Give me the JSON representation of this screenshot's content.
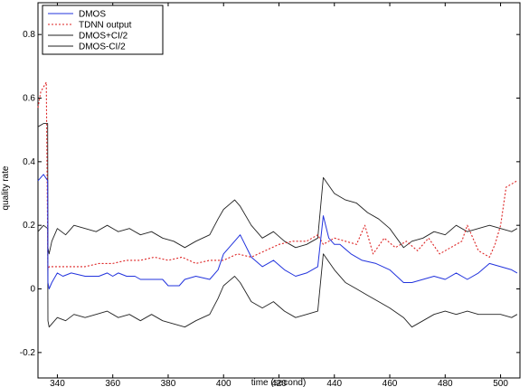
{
  "chart_data": {
    "type": "line",
    "xlabel": "time (second)",
    "ylabel": "quality rate",
    "xlim": [
      333,
      507
    ],
    "ylim": [
      -0.28,
      0.9
    ],
    "xticks": [
      340,
      360,
      380,
      400,
      420,
      440,
      460,
      480,
      500
    ],
    "yticks": [
      -0.2,
      0,
      0.2,
      0.4,
      0.6,
      0.8
    ],
    "xtick_labels": [
      "340",
      "360",
      "380",
      "400",
      "420",
      "440",
      "460",
      "480",
      "500"
    ],
    "ytick_labels": [
      "-0.2",
      "0",
      "0.2",
      "0.4",
      "0.6",
      "0.8"
    ],
    "grid": false,
    "legend": {
      "position": "top-left",
      "entries": [
        "DMOS",
        "TDNN output",
        "DMOS+CI/2",
        "DMOS-CI/2"
      ]
    },
    "series": [
      {
        "name": "DMOS",
        "color": "#2233dd",
        "x": [
          333,
          335,
          336.5,
          336.6,
          337,
          338,
          340,
          342,
          345,
          350,
          355,
          358,
          360,
          362,
          365,
          368,
          370,
          374,
          378,
          380,
          384,
          386,
          390,
          395,
          398,
          400,
          403,
          406,
          410,
          414,
          418,
          422,
          426,
          430,
          434,
          436,
          438,
          440,
          442,
          446,
          450,
          455,
          460,
          465,
          468,
          472,
          476,
          480,
          484,
          488,
          492,
          496,
          500,
          504,
          506
        ],
        "y": [
          0.34,
          0.36,
          0.34,
          0.02,
          0.0,
          0.02,
          0.05,
          0.04,
          0.05,
          0.04,
          0.04,
          0.05,
          0.04,
          0.05,
          0.04,
          0.04,
          0.03,
          0.03,
          0.03,
          0.01,
          0.01,
          0.03,
          0.04,
          0.03,
          0.06,
          0.11,
          0.14,
          0.17,
          0.1,
          0.07,
          0.09,
          0.06,
          0.04,
          0.05,
          0.07,
          0.23,
          0.16,
          0.14,
          0.14,
          0.11,
          0.09,
          0.08,
          0.06,
          0.02,
          0.02,
          0.03,
          0.04,
          0.03,
          0.05,
          0.03,
          0.05,
          0.08,
          0.07,
          0.06,
          0.05
        ]
      },
      {
        "name": "TDNN output",
        "color": "#dd2222",
        "x": [
          333,
          334,
          336,
          336.6,
          337,
          340,
          345,
          350,
          355,
          360,
          365,
          370,
          375,
          380,
          385,
          390,
          395,
          400,
          405,
          410,
          415,
          420,
          425,
          430,
          434,
          436,
          440,
          444,
          448,
          451,
          454,
          458,
          462,
          466,
          470,
          474,
          478,
          482,
          486,
          488,
          492,
          496,
          498,
          500,
          502,
          504,
          506
        ],
        "y": [
          0.57,
          0.62,
          0.65,
          0.06,
          0.07,
          0.07,
          0.07,
          0.07,
          0.08,
          0.08,
          0.09,
          0.09,
          0.1,
          0.09,
          0.1,
          0.08,
          0.09,
          0.09,
          0.11,
          0.1,
          0.12,
          0.14,
          0.15,
          0.15,
          0.17,
          0.14,
          0.16,
          0.15,
          0.14,
          0.2,
          0.11,
          0.16,
          0.13,
          0.15,
          0.12,
          0.16,
          0.11,
          0.13,
          0.15,
          0.2,
          0.12,
          0.1,
          0.14,
          0.2,
          0.32,
          0.33,
          0.34
        ]
      },
      {
        "name": "DMOS+CI/2",
        "color": "#222222",
        "x": [
          333,
          335,
          336.5,
          336.6,
          337,
          338,
          340,
          343,
          346,
          350,
          354,
          358,
          362,
          366,
          370,
          374,
          378,
          382,
          386,
          390,
          395,
          398,
          400,
          404,
          406,
          410,
          414,
          418,
          422,
          426,
          430,
          434,
          436,
          440,
          444,
          448,
          452,
          456,
          460,
          465,
          468,
          472,
          476,
          480,
          484,
          488,
          492,
          496,
          500,
          504,
          506
        ],
        "y": [
          0.51,
          0.52,
          0.52,
          0.13,
          0.11,
          0.15,
          0.19,
          0.17,
          0.2,
          0.19,
          0.18,
          0.2,
          0.18,
          0.19,
          0.17,
          0.18,
          0.16,
          0.15,
          0.13,
          0.15,
          0.17,
          0.22,
          0.25,
          0.28,
          0.26,
          0.2,
          0.16,
          0.18,
          0.15,
          0.13,
          0.14,
          0.16,
          0.35,
          0.3,
          0.28,
          0.27,
          0.24,
          0.22,
          0.19,
          0.13,
          0.15,
          0.16,
          0.18,
          0.17,
          0.2,
          0.18,
          0.19,
          0.2,
          0.19,
          0.18,
          0.19
        ]
      },
      {
        "name": "DMOS-CI/2",
        "color": "#222222",
        "x": [
          333,
          335,
          336.5,
          336.6,
          337,
          338,
          340,
          343,
          346,
          350,
          354,
          358,
          362,
          366,
          370,
          374,
          378,
          382,
          386,
          390,
          395,
          398,
          400,
          404,
          406,
          410,
          414,
          418,
          422,
          426,
          430,
          434,
          436,
          440,
          444,
          448,
          452,
          456,
          460,
          465,
          468,
          472,
          476,
          480,
          484,
          488,
          492,
          496,
          500,
          504,
          506
        ],
        "y": [
          0.18,
          0.2,
          0.19,
          -0.1,
          -0.12,
          -0.11,
          -0.09,
          -0.1,
          -0.08,
          -0.09,
          -0.08,
          -0.07,
          -0.09,
          -0.08,
          -0.1,
          -0.08,
          -0.1,
          -0.11,
          -0.12,
          -0.1,
          -0.08,
          -0.03,
          0.01,
          0.04,
          0.02,
          -0.04,
          -0.06,
          -0.04,
          -0.07,
          -0.09,
          -0.08,
          -0.07,
          0.11,
          0.06,
          0.02,
          0.0,
          -0.02,
          -0.04,
          -0.06,
          -0.09,
          -0.12,
          -0.1,
          -0.08,
          -0.07,
          -0.08,
          -0.07,
          -0.08,
          -0.08,
          -0.08,
          -0.09,
          -0.08
        ]
      }
    ]
  }
}
